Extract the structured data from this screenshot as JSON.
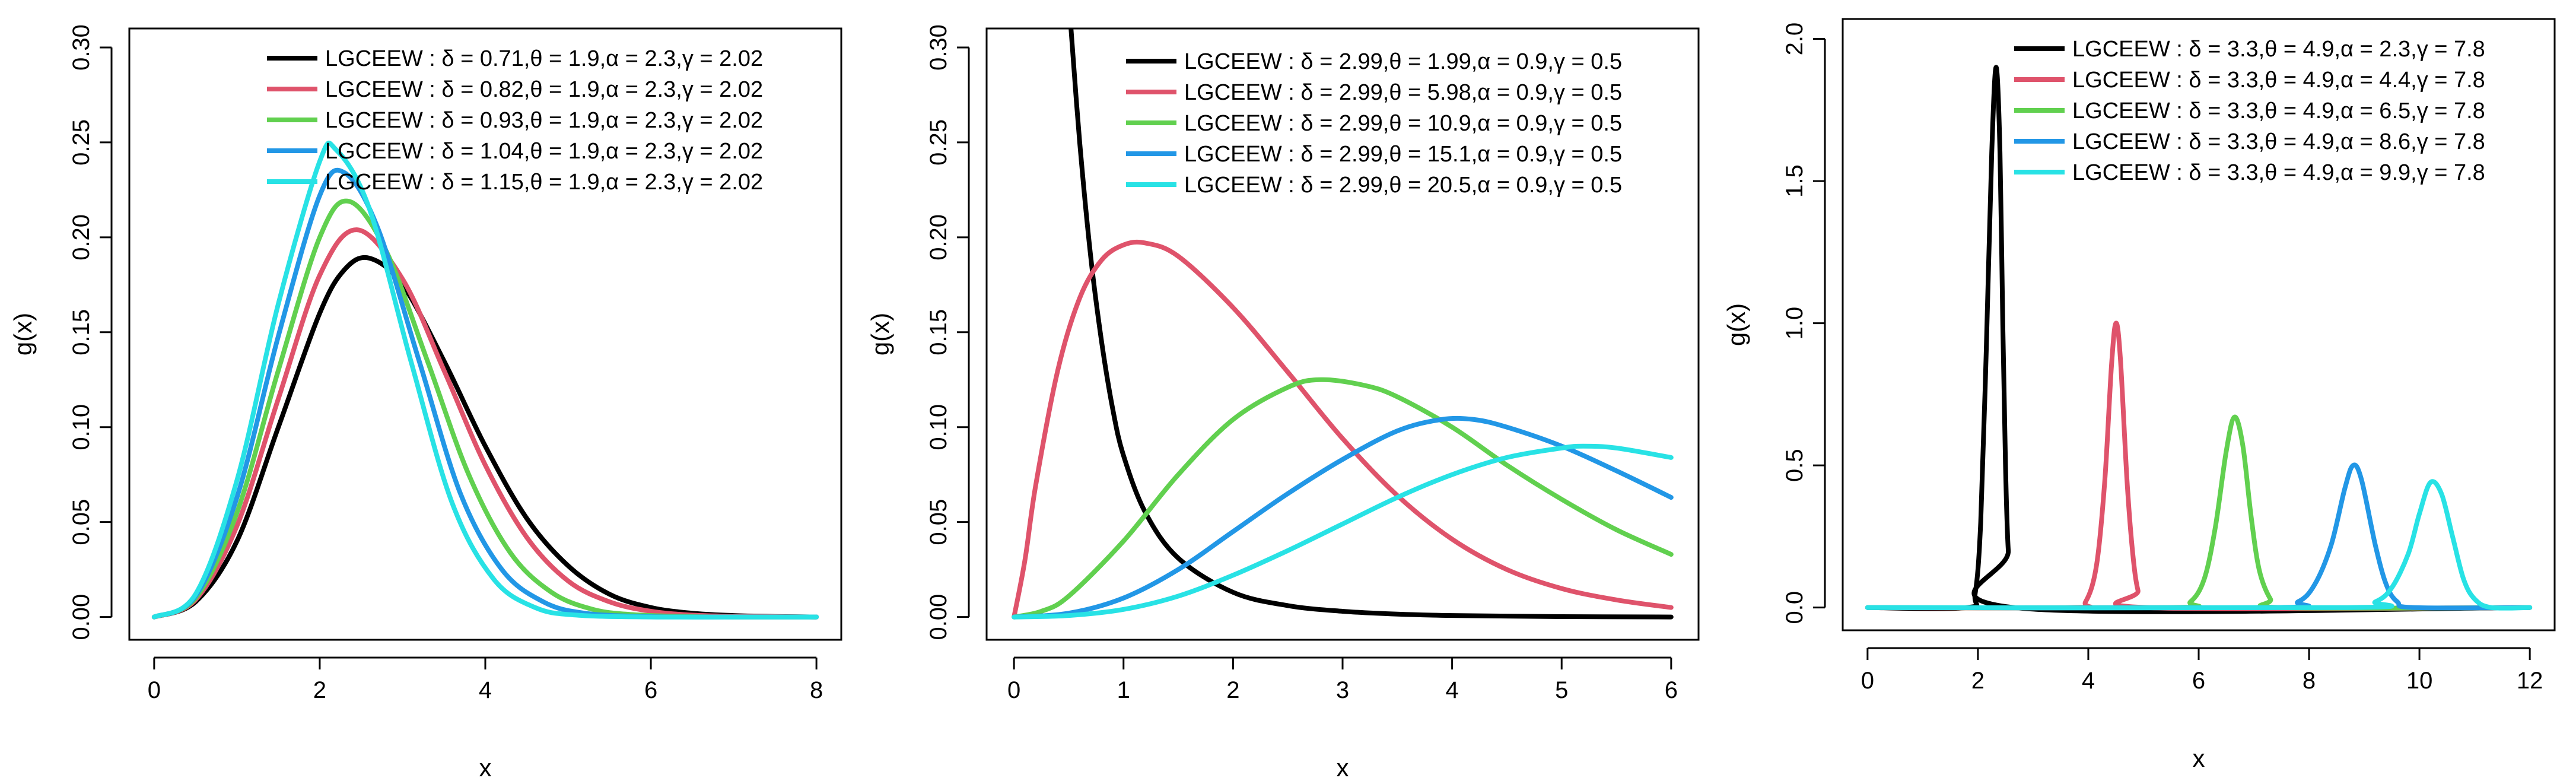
{
  "chart_data": [
    {
      "type": "line",
      "title": "",
      "xlabel": "x",
      "ylabel": "g(x)",
      "xlim": [
        -0.3,
        8.3
      ],
      "ylim": [
        -0.012,
        0.31
      ],
      "xticks": [
        0,
        2,
        4,
        6,
        8
      ],
      "yticks": [
        0.0,
        0.05,
        0.1,
        0.15,
        0.2,
        0.25,
        0.3
      ],
      "ytick_labels": [
        "0.00",
        "0.05",
        "0.10",
        "0.15",
        "0.20",
        "0.25",
        "0.30"
      ],
      "xtick_labels": [
        "0",
        "2",
        "4",
        "6",
        "8"
      ],
      "legend_position": "top-right",
      "series": [
        {
          "name": "LGCEEW : δ = 0.71,θ = 1.9,α = 2.3,γ = 2.02",
          "color": "#000000",
          "x": [
            0,
            0.5,
            1.0,
            1.5,
            2.0,
            2.3,
            2.6,
            3.0,
            3.5,
            4.0,
            4.5,
            5.0,
            5.5,
            6.0,
            6.5,
            7.0,
            7.5,
            8.0
          ],
          "y": [
            0,
            0.008,
            0.04,
            0.1,
            0.16,
            0.183,
            0.189,
            0.175,
            0.135,
            0.09,
            0.052,
            0.027,
            0.012,
            0.005,
            0.002,
            0.0008,
            0.0003,
            0
          ]
        },
        {
          "name": "LGCEEW : δ = 0.82,θ = 1.9,α = 2.3,γ = 2.02",
          "color": "#DF536B",
          "x": [
            0,
            0.5,
            1.0,
            1.5,
            2.0,
            2.45,
            3.0,
            3.5,
            4.0,
            4.5,
            5.0,
            5.5,
            6.0,
            6.5,
            7.0,
            8.0
          ],
          "y": [
            0,
            0.009,
            0.048,
            0.115,
            0.18,
            0.204,
            0.178,
            0.13,
            0.08,
            0.042,
            0.019,
            0.008,
            0.003,
            0.001,
            0.0004,
            0
          ]
        },
        {
          "name": "LGCEEW : δ = 0.93,θ = 1.9,α = 2.3,γ = 2.02",
          "color": "#61D04F",
          "x": [
            0,
            0.5,
            1.0,
            1.5,
            2.0,
            2.35,
            2.8,
            3.3,
            3.8,
            4.3,
            4.8,
            5.3,
            5.8,
            6.5,
            7.0,
            8.0
          ],
          "y": [
            0,
            0.01,
            0.055,
            0.13,
            0.2,
            0.219,
            0.193,
            0.135,
            0.075,
            0.034,
            0.013,
            0.004,
            0.0012,
            0.0002,
            0,
            0
          ]
        },
        {
          "name": "LGCEEW : δ = 1.04,θ = 1.9,α = 2.3,γ = 2.02",
          "color": "#2297E6",
          "x": [
            0,
            0.5,
            1.0,
            1.5,
            2.0,
            2.3,
            2.7,
            3.2,
            3.7,
            4.2,
            4.7,
            5.2,
            6.0,
            7.0,
            8.0
          ],
          "y": [
            0,
            0.011,
            0.063,
            0.148,
            0.222,
            0.234,
            0.205,
            0.135,
            0.065,
            0.025,
            0.008,
            0.002,
            0.0002,
            0,
            0
          ]
        },
        {
          "name": "LGCEEW : δ = 1.15,θ = 1.9,α = 2.3,γ = 2.02",
          "color": "#28E2E5",
          "x": [
            0,
            0.5,
            1.0,
            1.5,
            2.0,
            2.2,
            2.6,
            3.1,
            3.6,
            4.1,
            4.6,
            5.1,
            6.0,
            7.0,
            8.0
          ],
          "y": [
            0,
            0.012,
            0.072,
            0.165,
            0.24,
            0.246,
            0.215,
            0.135,
            0.06,
            0.02,
            0.005,
            0.001,
            0,
            0,
            0
          ]
        }
      ]
    },
    {
      "type": "line",
      "title": "",
      "xlabel": "x",
      "ylabel": "g(x)",
      "xlim": [
        -0.25,
        6.25
      ],
      "ylim": [
        -0.012,
        0.31
      ],
      "xticks": [
        0,
        1,
        2,
        3,
        4,
        5,
        6
      ],
      "yticks": [
        0.0,
        0.05,
        0.1,
        0.15,
        0.2,
        0.25,
        0.3
      ],
      "ytick_labels": [
        "0.00",
        "0.05",
        "0.10",
        "0.15",
        "0.20",
        "0.25",
        "0.30"
      ],
      "xtick_labels": [
        "0",
        "1",
        "2",
        "3",
        "4",
        "5",
        "6"
      ],
      "legend_position": "top-right",
      "series": [
        {
          "name": "LGCEEW : δ = 2.99,θ = 1.99,α = 0.9,γ = 0.5",
          "color": "#000000",
          "x": [
            0.52,
            0.6,
            0.7,
            0.8,
            0.9,
            1.0,
            1.2,
            1.5,
            2.0,
            2.5,
            3.0,
            3.5,
            4.0,
            5.0,
            6.0
          ],
          "y": [
            0.31,
            0.25,
            0.19,
            0.145,
            0.11,
            0.085,
            0.055,
            0.031,
            0.013,
            0.006,
            0.003,
            0.0015,
            0.0008,
            0.0002,
            0
          ]
        },
        {
          "name": "LGCEEW : δ = 2.99,θ = 5.98,α = 0.9,γ = 0.5",
          "color": "#DF536B",
          "x": [
            0,
            0.1,
            0.2,
            0.4,
            0.6,
            0.8,
            1.0,
            1.2,
            1.5,
            2.0,
            2.5,
            3.0,
            3.5,
            4.0,
            4.5,
            5.0,
            5.5,
            6.0
          ],
          "y": [
            0,
            0.03,
            0.07,
            0.13,
            0.168,
            0.188,
            0.196,
            0.197,
            0.19,
            0.163,
            0.129,
            0.094,
            0.064,
            0.041,
            0.025,
            0.015,
            0.009,
            0.005
          ]
        },
        {
          "name": "LGCEEW : δ = 2.99,θ = 10.9,α = 0.9,γ = 0.5",
          "color": "#61D04F",
          "x": [
            0,
            0.25,
            0.5,
            1.0,
            1.5,
            2.0,
            2.5,
            2.8,
            3.2,
            3.5,
            4.0,
            4.5,
            5.0,
            5.5,
            6.0
          ],
          "y": [
            0,
            0.003,
            0.011,
            0.04,
            0.075,
            0.104,
            0.121,
            0.125,
            0.122,
            0.116,
            0.1,
            0.08,
            0.062,
            0.046,
            0.033
          ]
        },
        {
          "name": "LGCEEW : δ = 2.99,θ = 15.1,α = 0.9,γ = 0.5",
          "color": "#2297E6",
          "x": [
            0,
            0.5,
            1.0,
            1.5,
            2.0,
            2.5,
            3.0,
            3.5,
            3.9,
            4.2,
            4.5,
            5.0,
            5.5,
            6.0
          ],
          "y": [
            0,
            0.002,
            0.01,
            0.025,
            0.045,
            0.065,
            0.083,
            0.098,
            0.104,
            0.104,
            0.1,
            0.09,
            0.077,
            0.063
          ]
        },
        {
          "name": "LGCEEW : δ = 2.99,θ = 20.5,α = 0.9,γ = 0.5",
          "color": "#28E2E5",
          "x": [
            0,
            0.5,
            1.0,
            1.5,
            2.0,
            2.5,
            3.0,
            3.5,
            4.0,
            4.5,
            5.0,
            5.2,
            5.5,
            6.0
          ],
          "y": [
            0,
            0.0008,
            0.004,
            0.011,
            0.022,
            0.035,
            0.049,
            0.063,
            0.075,
            0.084,
            0.089,
            0.09,
            0.089,
            0.084
          ]
        }
      ]
    },
    {
      "type": "line",
      "title": "",
      "xlabel": "x",
      "ylabel": "g(x)",
      "xlim": [
        -0.45,
        12.45
      ],
      "ylim": [
        -0.08,
        2.07
      ],
      "xticks": [
        0,
        2,
        4,
        6,
        8,
        10,
        12
      ],
      "yticks": [
        0.0,
        0.5,
        1.0,
        1.5,
        2.0
      ],
      "ytick_labels": [
        "0.0",
        "0.5",
        "1.0",
        "1.5",
        "2.0"
      ],
      "xtick_labels": [
        "0",
        "2",
        "4",
        "6",
        "8",
        "10",
        "12"
      ],
      "legend_position": "top-right",
      "series": [
        {
          "name": "LGCEEW : δ = 3.3,θ = 4.9,α = 2.3,γ = 7.8",
          "color": "#000000",
          "x": [
            0,
            1.8,
            1.95,
            2.05,
            2.15,
            2.25,
            2.33,
            2.4,
            2.45,
            2.5,
            2.55,
            2.65,
            12
          ],
          "y": [
            0,
            0,
            0.05,
            0.3,
            0.9,
            1.6,
            1.9,
            1.6,
            1.0,
            0.5,
            0.2,
            0,
            0
          ]
        },
        {
          "name": "LGCEEW : δ = 3.3,θ = 4.9,α = 4.4,γ = 7.8",
          "color": "#DF536B",
          "x": [
            0,
            3.7,
            3.95,
            4.15,
            4.3,
            4.42,
            4.5,
            4.58,
            4.7,
            4.8,
            4.9,
            5.05,
            12
          ],
          "y": [
            0,
            0,
            0.02,
            0.15,
            0.45,
            0.85,
            1.0,
            0.88,
            0.45,
            0.2,
            0.06,
            0,
            0
          ]
        },
        {
          "name": "LGCEEW : δ = 3.3,θ = 4.9,α = 6.5,γ = 7.8",
          "color": "#61D04F",
          "x": [
            0,
            5.5,
            5.85,
            6.1,
            6.3,
            6.5,
            6.65,
            6.8,
            6.95,
            7.1,
            7.3,
            7.5,
            12
          ],
          "y": [
            0,
            0,
            0.02,
            0.1,
            0.28,
            0.55,
            0.67,
            0.57,
            0.32,
            0.13,
            0.03,
            0,
            0
          ]
        },
        {
          "name": "LGCEEW : δ = 3.3,θ = 4.9,α = 8.6,γ = 7.8",
          "color": "#2297E6",
          "x": [
            0,
            7.3,
            7.8,
            8.1,
            8.4,
            8.65,
            8.8,
            8.95,
            9.2,
            9.4,
            9.6,
            9.9,
            12
          ],
          "y": [
            0,
            0,
            0.02,
            0.08,
            0.22,
            0.42,
            0.5,
            0.45,
            0.22,
            0.08,
            0.02,
            0,
            0
          ]
        },
        {
          "name": "LGCEEW : δ = 3.3,θ = 4.9,α = 9.9,γ = 7.8",
          "color": "#28E2E5",
          "x": [
            0,
            8.7,
            9.2,
            9.5,
            9.8,
            10.0,
            10.2,
            10.4,
            10.6,
            10.8,
            11.0,
            11.3,
            12
          ],
          "y": [
            0,
            0,
            0.02,
            0.07,
            0.19,
            0.33,
            0.44,
            0.4,
            0.25,
            0.1,
            0.03,
            0,
            0
          ]
        }
      ]
    }
  ]
}
